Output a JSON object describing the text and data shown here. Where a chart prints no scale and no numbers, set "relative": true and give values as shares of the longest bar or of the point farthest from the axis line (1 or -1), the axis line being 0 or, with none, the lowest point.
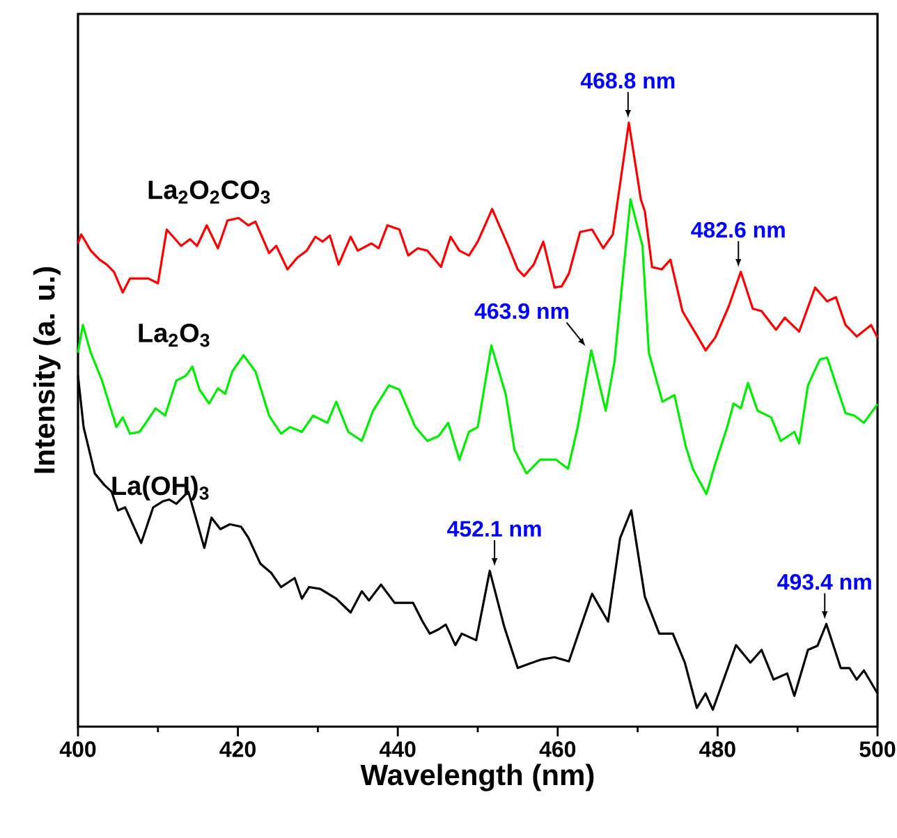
{
  "chart_data": {
    "type": "line",
    "relative": true,
    "xlabel": "Wavelength  (nm)",
    "ylabel": "Intensity (a. u.)",
    "xlim": [
      400,
      500
    ],
    "xticks": [
      400,
      420,
      440,
      460,
      480,
      500
    ],
    "legend": false,
    "marker": "none",
    "line_style": "solid",
    "series": [
      {
        "name": "La$_{2}$O$_{2}$CO$_{3}$",
        "color": "#ff0000",
        "x": [
          400,
          400.4,
          401.6,
          402.7,
          403.6,
          404.5,
          405.6,
          406.5,
          407.7,
          408.8,
          410,
          411.1,
          412.9,
          414,
          414.9,
          416.1,
          417.5,
          418.7,
          420.1,
          421.3,
          422.2,
          423.9,
          424.8,
          426.2,
          427.4,
          428.6,
          429.7,
          430.6,
          431.5,
          432.6,
          434.1,
          435,
          436.7,
          437.6,
          438.7,
          440.2,
          441.3,
          442.5,
          443.7,
          445.4,
          446.6,
          447.7,
          448.9,
          450,
          451.8,
          453.8,
          455,
          455.8,
          457,
          458.2,
          459.6,
          460.5,
          461.4,
          462.8,
          464.3,
          465.7,
          466.9,
          468.9,
          470.4,
          470.9,
          471.8,
          473,
          474.1,
          475.6,
          477.3,
          478.5,
          479.7,
          481.4,
          482.9,
          484.4,
          485.5,
          487.3,
          488.4,
          490.2,
          492.2,
          493.7,
          494.8,
          496,
          497.4,
          499.2,
          500
        ],
        "values": [
          0.8,
          0.815,
          0.788,
          0.773,
          0.765,
          0.753,
          0.719,
          0.742,
          0.742,
          0.742,
          0.734,
          0.823,
          0.796,
          0.807,
          0.796,
          0.83,
          0.792,
          0.838,
          0.842,
          0.83,
          0.836,
          0.784,
          0.796,
          0.757,
          0.776,
          0.788,
          0.811,
          0.803,
          0.813,
          0.765,
          0.811,
          0.788,
          0.8,
          0.792,
          0.83,
          0.823,
          0.78,
          0.792,
          0.788,
          0.761,
          0.811,
          0.788,
          0.78,
          0.803,
          0.857,
          0.796,
          0.757,
          0.746,
          0.765,
          0.803,
          0.727,
          0.729,
          0.75,
          0.819,
          0.823,
          0.792,
          0.815,
          1.0,
          0.873,
          0.853,
          0.761,
          0.757,
          0.773,
          0.688,
          0.65,
          0.623,
          0.644,
          0.696,
          0.753,
          0.692,
          0.688,
          0.657,
          0.677,
          0.654,
          0.727,
          0.704,
          0.711,
          0.665,
          0.646,
          0.665,
          0.644
        ]
      },
      {
        "name": "La$_{2}$O$_{3}$",
        "color": "#00ee00",
        "x": [
          400,
          400.6,
          401.6,
          403,
          404.8,
          405.6,
          406.5,
          407.7,
          408.5,
          409.7,
          410.9,
          412.3,
          413.5,
          414.3,
          415.2,
          416.4,
          417.5,
          418.4,
          419.3,
          420.7,
          422.2,
          423.9,
          425.4,
          426.5,
          428,
          429.4,
          431.2,
          432.3,
          433.8,
          435.5,
          436.9,
          438.9,
          440.2,
          442.2,
          443.7,
          445.1,
          446.3,
          447.7,
          448.9,
          450,
          451.7,
          453.5,
          454.6,
          456.1,
          457.8,
          459.8,
          461.3,
          462.5,
          464.2,
          466,
          467.1,
          469.1,
          470.6,
          471.4,
          473.1,
          474.6,
          476,
          476.9,
          478.6,
          479.7,
          481.2,
          482,
          482.9,
          483.8,
          485,
          486.7,
          487.9,
          489.6,
          490.2,
          491.3,
          492.8,
          493.7,
          496,
          497.1,
          498.3,
          500
        ],
        "values": [
          0.619,
          0.665,
          0.619,
          0.573,
          0.496,
          0.512,
          0.485,
          0.488,
          0.503,
          0.527,
          0.515,
          0.573,
          0.581,
          0.596,
          0.558,
          0.535,
          0.56,
          0.551,
          0.588,
          0.615,
          0.588,
          0.515,
          0.485,
          0.496,
          0.488,
          0.515,
          0.503,
          0.538,
          0.488,
          0.473,
          0.523,
          0.565,
          0.558,
          0.496,
          0.473,
          0.481,
          0.503,
          0.442,
          0.488,
          0.496,
          0.631,
          0.55,
          0.458,
          0.419,
          0.442,
          0.442,
          0.427,
          0.496,
          0.623,
          0.523,
          0.604,
          0.873,
          0.796,
          0.619,
          0.538,
          0.549,
          0.465,
          0.427,
          0.385,
          0.435,
          0.496,
          0.535,
          0.527,
          0.569,
          0.523,
          0.512,
          0.473,
          0.488,
          0.469,
          0.565,
          0.608,
          0.611,
          0.519,
          0.515,
          0.503,
          0.534
        ]
      },
      {
        "name": "La(OH)$_{3}$",
        "color": "#000000",
        "x": [
          400,
          400.7,
          402.1,
          403.3,
          404.2,
          405,
          405.9,
          407.9,
          409.4,
          410.6,
          411.4,
          412.3,
          413.8,
          415.8,
          416.7,
          417.8,
          419,
          420.4,
          421.3,
          422.8,
          424.2,
          425.4,
          427.1,
          428,
          428.9,
          430.3,
          432.3,
          434.1,
          435.5,
          436.4,
          437.9,
          439.6,
          441.9,
          443.1,
          444,
          445.1,
          446,
          447.2,
          448,
          449.8,
          451.5,
          453.3,
          455,
          456.4,
          457.9,
          459.6,
          461.4,
          464.3,
          466.3,
          467.8,
          469.2,
          470.9,
          472.7,
          474.4,
          475.9,
          477.4,
          478.5,
          479.4,
          482.3,
          484.1,
          485.5,
          487,
          488.7,
          489.6,
          491.3,
          492.5,
          493.6,
          495.4,
          496.5,
          497.4,
          498.3,
          500
        ],
        "values": [
          0.581,
          0.496,
          0.419,
          0.4,
          0.389,
          0.358,
          0.363,
          0.304,
          0.363,
          0.373,
          0.376,
          0.369,
          0.389,
          0.296,
          0.346,
          0.327,
          0.335,
          0.331,
          0.313,
          0.27,
          0.254,
          0.231,
          0.246,
          0.212,
          0.231,
          0.228,
          0.212,
          0.189,
          0.224,
          0.209,
          0.235,
          0.205,
          0.205,
          0.174,
          0.154,
          0.161,
          0.169,
          0.135,
          0.154,
          0.143,
          0.258,
          0.166,
          0.097,
          0.104,
          0.111,
          0.115,
          0.108,
          0.22,
          0.174,
          0.312,
          0.358,
          0.215,
          0.154,
          0.154,
          0.106,
          0.031,
          0.055,
          0.028,
          0.135,
          0.106,
          0.127,
          0.078,
          0.088,
          0.051,
          0.127,
          0.134,
          0.17,
          0.097,
          0.097,
          0.078,
          0.093,
          0.055
        ]
      }
    ],
    "annotations": [
      {
        "text": "468.8 nm",
        "x": 468.8,
        "y": 1.0
      },
      {
        "text": "482.6 nm",
        "x": 482.6,
        "y": 0.753
      },
      {
        "text": "463.9 nm",
        "x": 463.9,
        "y": 0.623
      },
      {
        "text": "452.1 nm",
        "x": 452.1,
        "y": 0.258
      },
      {
        "text": "493.4 nm",
        "x": 493.4,
        "y": 0.17
      }
    ]
  }
}
